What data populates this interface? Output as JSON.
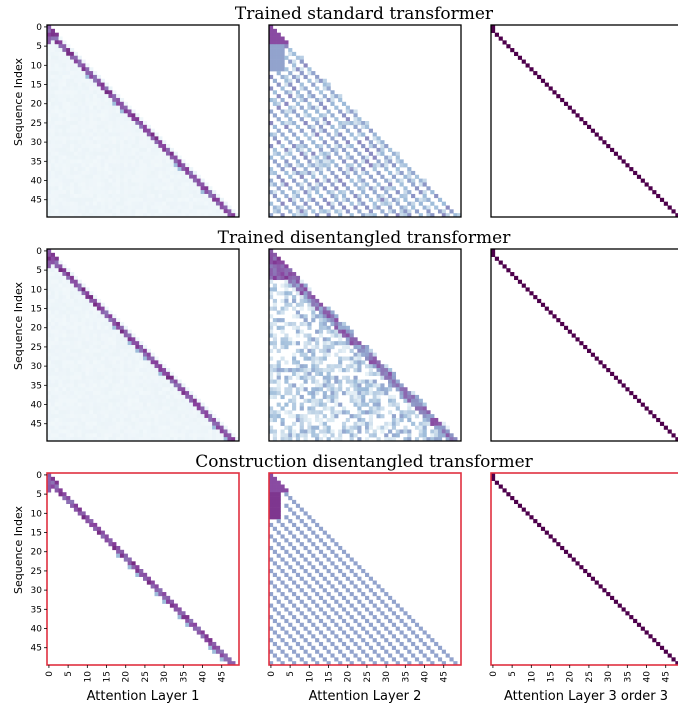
{
  "figure": {
    "row_titles": [
      "Trained standard transformer",
      "Trained disentangled transformer",
      "Construction disentangled transformer"
    ],
    "col_labels": [
      "Attention Layer 1",
      "Attention Layer 2",
      "Attention Layer 3 order 3"
    ],
    "ylabel": "Sequence Index"
  },
  "chart_data": {
    "type": "heatmap",
    "matrix_size": 50,
    "y_ticks": [
      0,
      5,
      10,
      15,
      20,
      25,
      30,
      35,
      40,
      45
    ],
    "x_ticks": [
      0,
      5,
      10,
      15,
      20,
      25,
      30,
      35,
      40,
      45
    ],
    "rows": [
      {
        "title": "Trained standard transformer",
        "panels": [
          {
            "pattern": "diagonal",
            "main_offset": 1,
            "width": 2,
            "upper_left_band": true,
            "background_fill": 0.06
          },
          {
            "pattern": "periodic",
            "period": 3,
            "strong_prefix": 5,
            "fill": 0.35
          },
          {
            "pattern": "single-diagonal",
            "offset": 1
          }
        ]
      },
      {
        "title": "Trained disentangled transformer",
        "panels": [
          {
            "pattern": "diagonal",
            "main_offset": 1,
            "width": 2,
            "upper_left_band": true,
            "background_fill": 0.06
          },
          {
            "pattern": "noisy-lower",
            "strong_near_diagonal": true,
            "fill": 0.3
          },
          {
            "pattern": "single-diagonal",
            "offset": 1
          }
        ]
      },
      {
        "title": "Construction disentangled transformer",
        "border_color": "#e03040",
        "panels": [
          {
            "pattern": "diagonal",
            "main_offset": 1,
            "width": 2,
            "upper_left_band": true,
            "background_fill": 0.0
          },
          {
            "pattern": "periodic-clean",
            "period": 3,
            "strong_prefix": 5,
            "fill": 0.0
          },
          {
            "pattern": "single-diagonal",
            "offset": 1
          }
        ]
      }
    ],
    "colormap": "BuPu",
    "colors": {
      "low": "#f7fcfd",
      "mid": "#8c96c6",
      "high": "#4d004b"
    }
  }
}
